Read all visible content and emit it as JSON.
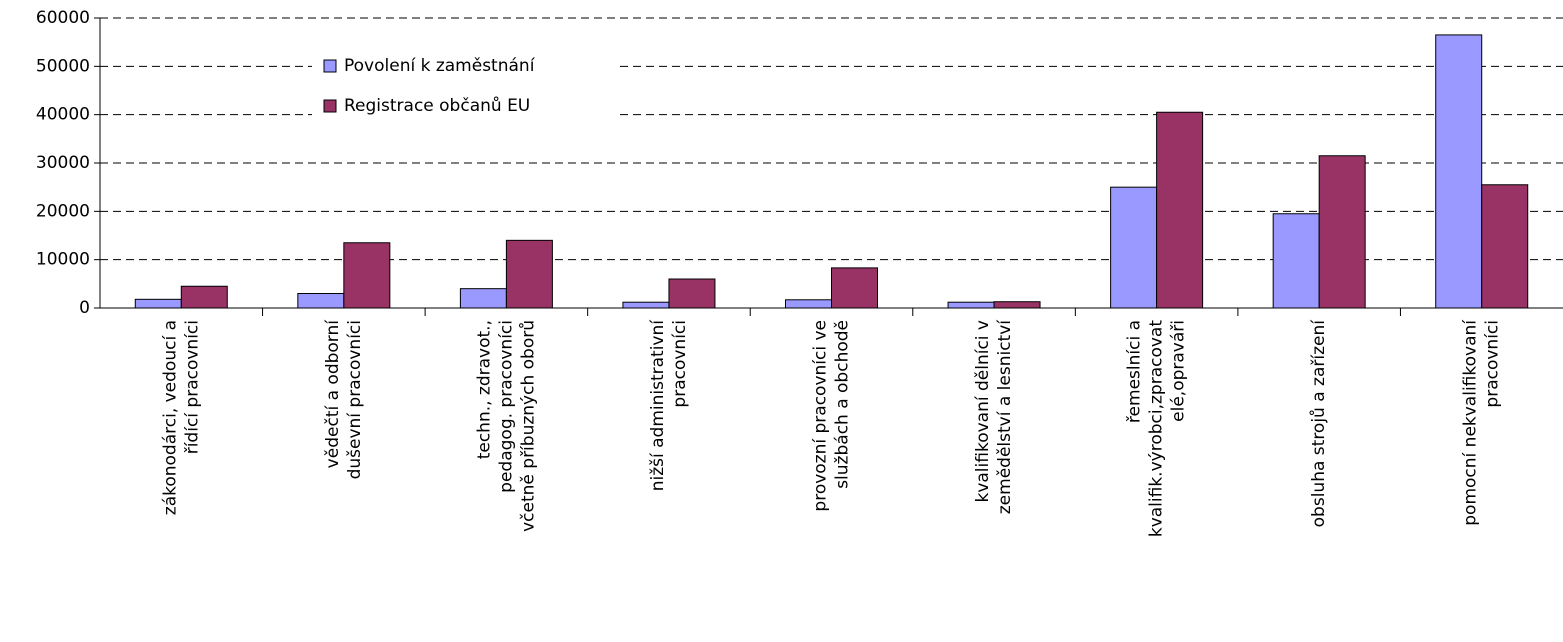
{
  "chart_data": {
    "type": "bar",
    "categories": [
      "zákonodárci, vedoucí a\nřídící pracovníci",
      "vědečtí a odborní\nduševní pracovníci",
      "techn., zdravot.,\npedagog. pracovníci\nvčetně příbuzných oborů",
      "nižší administrativní\npracovníci",
      "provozní pracovníci ve\nslužbách a obchodě",
      "kvalifikovaní dělníci v\nzemědělství a lesnictví",
      "řemeslníci a\nkvalifik.výrobci,zpracovat\nelé,opraváři",
      "obsluha strojů a zařízení",
      "pomocní nekvalifikovaní\npracovníci"
    ],
    "series": [
      {
        "name": "Povolení k zaměstnání",
        "color": "#9999ff",
        "values": [
          1800,
          3000,
          4000,
          1200,
          1700,
          1200,
          25000,
          19500,
          56500
        ]
      },
      {
        "name": "Registrace občanů EU",
        "color": "#993366",
        "values": [
          4500,
          13500,
          14000,
          6000,
          8300,
          1300,
          40500,
          31500,
          25500
        ]
      }
    ],
    "ylim": [
      0,
      60000
    ],
    "yticks": [
      0,
      10000,
      20000,
      30000,
      40000,
      50000,
      60000
    ],
    "grid": true,
    "legend": "top-left"
  }
}
